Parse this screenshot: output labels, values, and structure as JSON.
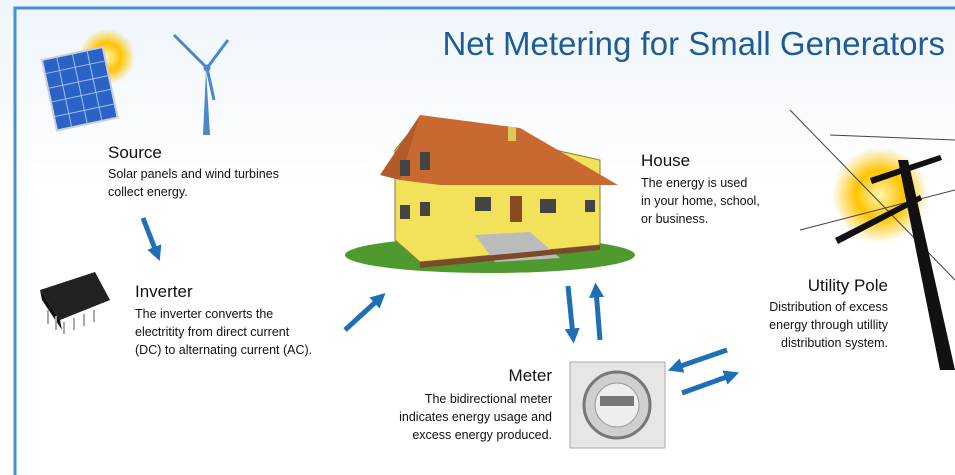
{
  "title": "Net Metering for Small Generators",
  "nodes": [
    {
      "label": "Source",
      "lines": [
        "Solar panels and wind turbines",
        "collect energy."
      ]
    },
    {
      "label": "Inverter",
      "lines": [
        "The inverter converts the",
        "electritity from direct current",
        "(DC) to alternating current (AC)."
      ]
    },
    {
      "label": "House",
      "lines": [
        "The energy is used",
        "in your home, school,",
        "or business."
      ]
    },
    {
      "label": "Utility Pole",
      "lines": [
        "Distribution of excess",
        "energy through utillity",
        "distribution system."
      ]
    },
    {
      "label": "Meter",
      "lines": [
        "The bidirectional meter",
        "indicates energy usage and",
        "excess energy produced."
      ]
    }
  ]
}
